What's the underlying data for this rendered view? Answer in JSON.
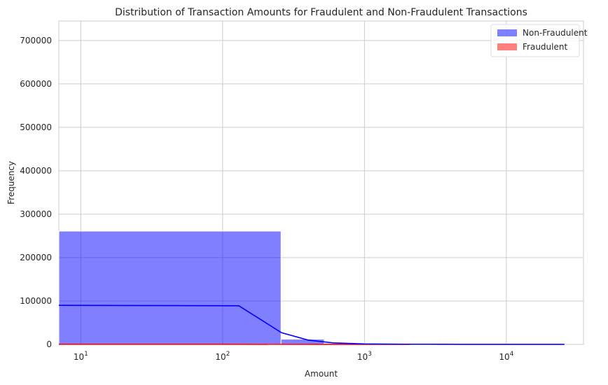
{
  "chart_data": {
    "type": "bar",
    "title": "Distribution of Transaction Amounts for Fraudulent and Non-Fraudulent Transactions",
    "xlabel": "Amount",
    "ylabel": "Frequency",
    "xscale": "log",
    "xlim": [
      7,
      35000
    ],
    "ylim": [
      0,
      745000
    ],
    "xticks": [
      {
        "value": 10,
        "base": "10",
        "exp": "1"
      },
      {
        "value": 100,
        "base": "10",
        "exp": "2"
      },
      {
        "value": 1000,
        "base": "10",
        "exp": "3"
      },
      {
        "value": 10000,
        "base": "10",
        "exp": "4"
      }
    ],
    "yticks": [
      0,
      100000,
      200000,
      300000,
      400000,
      500000,
      600000,
      700000
    ],
    "grid": true,
    "legend": {
      "placement": "top-right",
      "entries": [
        "Non-Fraudulent",
        "Fraudulent"
      ]
    },
    "series": [
      {
        "name": "Non-Fraudulent",
        "color": "#0000ff",
        "opacity": 0.5,
        "bins": [
          {
            "x0": 7,
            "x1": 258,
            "count": 261000
          },
          {
            "x0": 258,
            "x1": 520,
            "count": 12000
          },
          {
            "x0": 520,
            "x1": 1050,
            "count": 2500
          },
          {
            "x0": 1050,
            "x1": 2100,
            "count": 800
          },
          {
            "x0": 2100,
            "x1": 25700,
            "count": 300
          }
        ],
        "kde": {
          "x": [
            7,
            130,
            260,
            400,
            600,
            1000,
            2000,
            5000,
            10000,
            25700
          ],
          "y": [
            90000,
            89000,
            27000,
            10000,
            3500,
            1200,
            400,
            150,
            80,
            40
          ]
        }
      },
      {
        "name": "Fraudulent",
        "color": "#ff0000",
        "opacity": 0.5,
        "bins": [
          {
            "x0": 7,
            "x1": 258,
            "count": 600
          },
          {
            "x0": 258,
            "x1": 2100,
            "count": 100
          }
        ],
        "kde": {
          "x": [
            7,
            100,
            500,
            1000,
            2100
          ],
          "y": [
            300,
            280,
            60,
            20,
            5
          ]
        }
      }
    ]
  }
}
